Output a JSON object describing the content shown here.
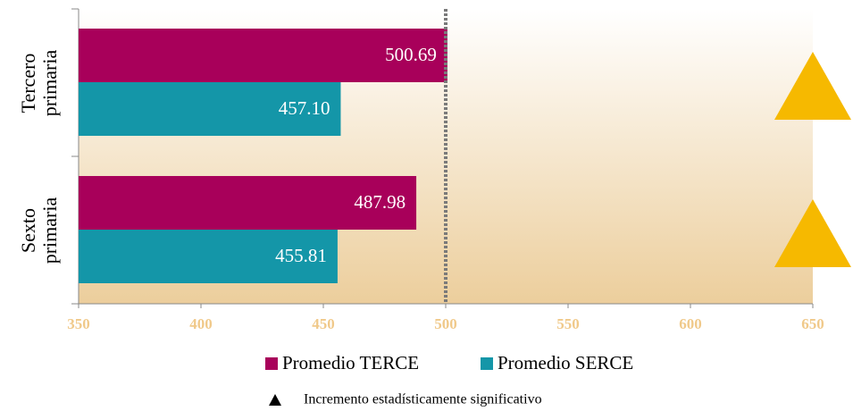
{
  "chart_data": {
    "type": "bar",
    "orientation": "horizontal",
    "categories": [
      "Tercero primaria",
      "Sexto primaria"
    ],
    "series": [
      {
        "name": "Promedio TERCE",
        "color": "#a8005a",
        "values": [
          500.69,
          487.98
        ],
        "value_labels": [
          "500.69",
          "487.98"
        ]
      },
      {
        "name": "Promedio SERCE",
        "color": "#1496a8",
        "values": [
          457.1,
          455.81
        ],
        "value_labels": [
          "457.10",
          "455.81"
        ]
      }
    ],
    "xlim": [
      350,
      650
    ],
    "xticks": [
      350,
      400,
      450,
      500,
      550,
      600,
      650
    ],
    "reference_line": 500,
    "significant": [
      true,
      true
    ],
    "marker_color": "#f6b900",
    "note": "Incremento estadísticamente significativo"
  }
}
